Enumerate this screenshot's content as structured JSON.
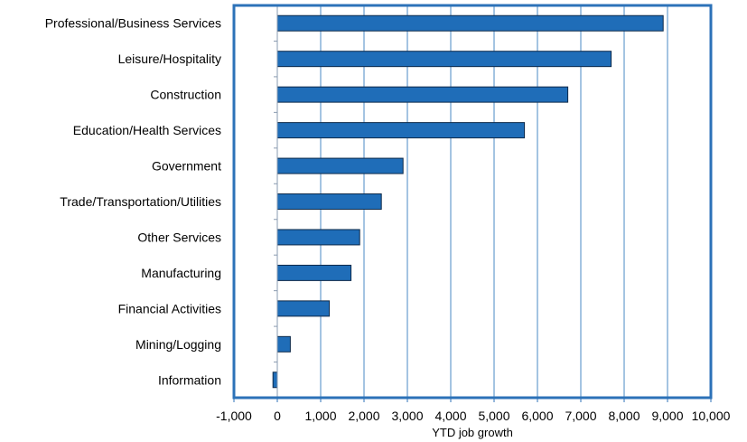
{
  "chart_data": {
    "type": "bar",
    "orientation": "horizontal",
    "categories": [
      "Professional/Business Services",
      "Leisure/Hospitality",
      "Construction",
      "Education/Health Services",
      "Government",
      "Trade/Transportation/Utilities",
      "Other Services",
      "Manufacturing",
      "Financial Activities",
      "Mining/Logging",
      "Information"
    ],
    "values": [
      8900,
      7700,
      6700,
      5700,
      2900,
      2400,
      1900,
      1700,
      1200,
      300,
      -100
    ],
    "xlabel": "YTD job growth",
    "ylabel": "",
    "xlim": [
      -1000,
      10000
    ],
    "xticks": [
      -1000,
      0,
      1000,
      2000,
      3000,
      4000,
      5000,
      6000,
      7000,
      8000,
      9000,
      10000
    ],
    "xtick_labels": [
      "-1,000",
      "0",
      "1,000",
      "2,000",
      "3,000",
      "4,000",
      "5,000",
      "6,000",
      "7,000",
      "8,000",
      "9,000",
      "10,000"
    ],
    "grid": "vertical",
    "legend": "none",
    "colors": {
      "bar_fill": "#1f6db8",
      "bar_edge": "#0d2a4a",
      "frame": "#2c72b8",
      "gridline": "#4a8ac6"
    }
  }
}
